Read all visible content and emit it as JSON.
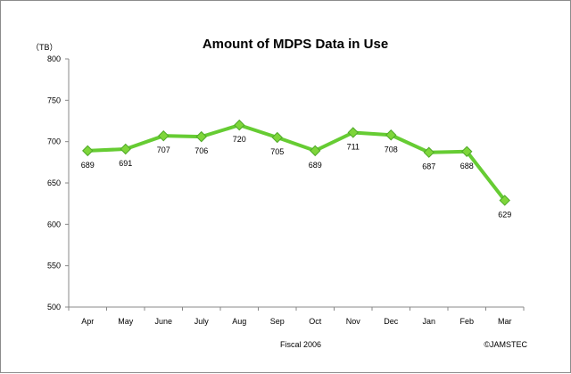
{
  "chart_data": {
    "type": "line",
    "title": "Amount of MDPS Data in Use",
    "ylabel": "（TB）",
    "xlabel": "Fiscal 2006",
    "categories": [
      "Apr",
      "May",
      "June",
      "July",
      "Aug",
      "Sep",
      "Oct",
      "Nov",
      "Dec",
      "Jan",
      "Feb",
      "Mar"
    ],
    "series": [
      {
        "values": [
          689,
          691,
          707,
          706,
          720,
          705,
          689,
          711,
          708,
          687,
          688,
          629
        ]
      }
    ],
    "ylim": [
      500,
      800
    ],
    "yticks": [
      500,
      550,
      600,
      650,
      700,
      750,
      800
    ],
    "grid": false,
    "line_color": "#66cc33",
    "marker_color": "#7ed63a",
    "data_labels": true
  },
  "footer": {
    "copyright": "©JAMSTEC"
  }
}
